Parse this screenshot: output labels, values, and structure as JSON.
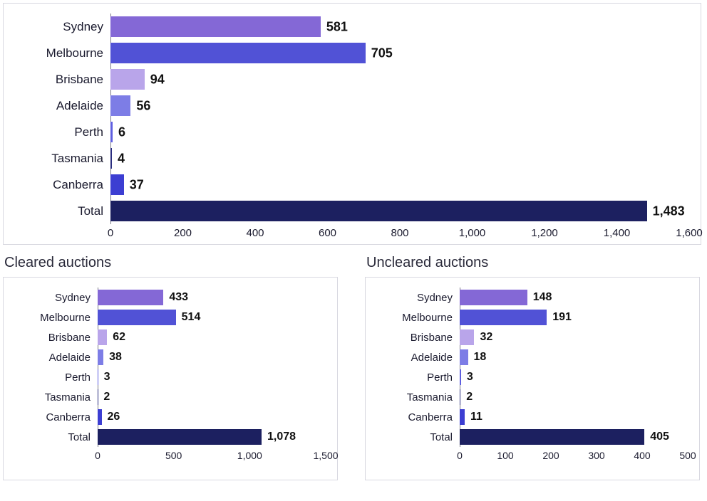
{
  "top_chart": {
    "type": "bar-horizontal",
    "label_width": 134,
    "bar_row_height": 37,
    "axis_height": 30,
    "categories": [
      "Sydney",
      "Melbourne",
      "Brisbane",
      "Adelaide",
      "Perth",
      "Tasmania",
      "Canberra",
      "Total"
    ],
    "values": [
      581,
      705,
      94,
      56,
      6,
      4,
      37,
      1483
    ],
    "value_labels": [
      "581",
      "705",
      "94",
      "56",
      "6",
      "4",
      "37",
      "1,483"
    ],
    "bar_colors": [
      "#8468d6",
      "#5152d6",
      "#b9a5ea",
      "#7d7de6",
      "#5f5fe0",
      "#2a2d7e",
      "#3c3ed2",
      "#1c2060"
    ],
    "xlim": [
      0,
      1600
    ],
    "xtick_step": 200,
    "xtick_labels": [
      "0",
      "200",
      "400",
      "600",
      "800",
      "1,000",
      "1,200",
      "1,400",
      "1,600"
    ],
    "background_color": "#ffffff",
    "grid_color": "#eceaf0",
    "label_fontsize": 17,
    "value_fontsize": 18
  },
  "cleared_chart": {
    "title": "Cleared auctions",
    "type": "bar-horizontal",
    "label_width": 116,
    "bar_row_height": 28,
    "axis_height": 26,
    "categories": [
      "Sydney",
      "Melbourne",
      "Brisbane",
      "Adelaide",
      "Perth",
      "Tasmania",
      "Canberra",
      "Total"
    ],
    "values": [
      433,
      514,
      62,
      38,
      3,
      2,
      26,
      1078
    ],
    "value_labels": [
      "433",
      "514",
      "62",
      "38",
      "3",
      "2",
      "26",
      "1,078"
    ],
    "bar_colors": [
      "#8468d6",
      "#5152d6",
      "#b9a5ea",
      "#7d7de6",
      "#5f5fe0",
      "#2a2d7e",
      "#3c3ed2",
      "#1c2060"
    ],
    "xlim": [
      0,
      1500
    ],
    "xtick_step": 500,
    "xtick_labels": [
      "0",
      "500",
      "1,000",
      "1,500"
    ],
    "background_color": "#ffffff",
    "grid_color": "#eceaf0",
    "label_fontsize": 15,
    "value_fontsize": 16
  },
  "uncleared_chart": {
    "title": "Uncleared auctions",
    "type": "bar-horizontal",
    "label_width": 116,
    "bar_row_height": 28,
    "axis_height": 26,
    "categories": [
      "Sydney",
      "Melbourne",
      "Brisbane",
      "Adelaide",
      "Perth",
      "Tasmania",
      "Canberra",
      "Total"
    ],
    "values": [
      148,
      191,
      32,
      18,
      3,
      2,
      11,
      405
    ],
    "value_labels": [
      "148",
      "191",
      "32",
      "18",
      "3",
      "2",
      "11",
      "405"
    ],
    "bar_colors": [
      "#8468d6",
      "#5152d6",
      "#b9a5ea",
      "#7d7de6",
      "#5f5fe0",
      "#2a2d7e",
      "#3c3ed2",
      "#1c2060"
    ],
    "xlim": [
      0,
      500
    ],
    "xtick_step": 100,
    "xtick_labels": [
      "0",
      "100",
      "200",
      "300",
      "400",
      "500"
    ],
    "background_color": "#ffffff",
    "grid_color": "#eceaf0",
    "label_fontsize": 15,
    "value_fontsize": 16
  }
}
